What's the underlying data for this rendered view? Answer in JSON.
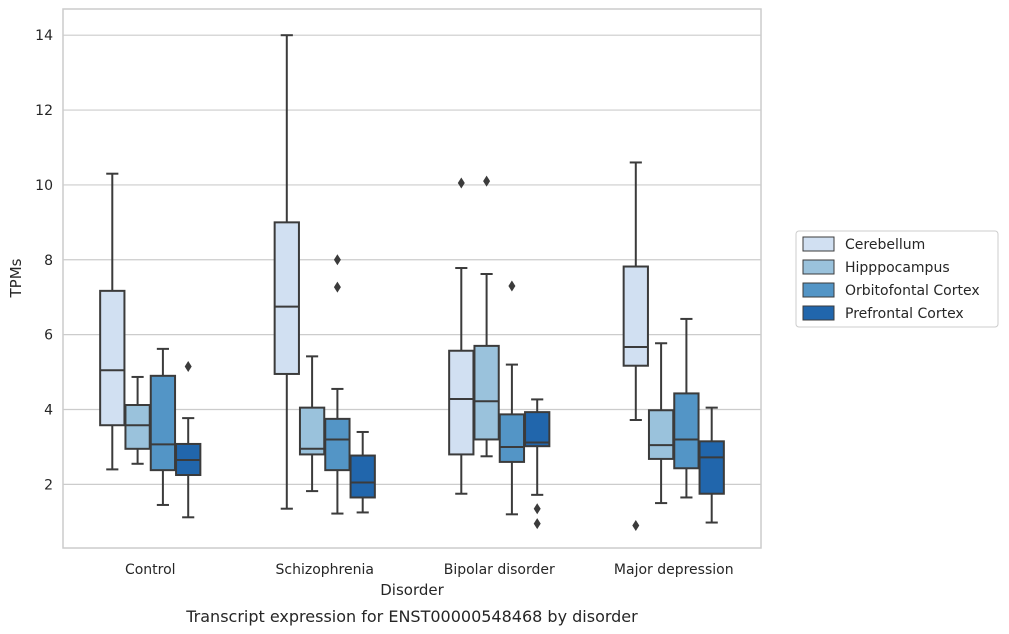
{
  "chart_data": {
    "type": "box",
    "title": "",
    "caption": "Transcript expression for ENST00000548468 by disorder",
    "xlabel": "Disorder",
    "ylabel": "TPMs",
    "ylim": [
      0.3,
      14.7
    ],
    "yticks": [
      2,
      4,
      6,
      8,
      10,
      12,
      14
    ],
    "grid": "horizontal",
    "legend_position": "right",
    "categories": [
      "Control",
      "Schizophrenia",
      "Bipolar disorder",
      "Major depression"
    ],
    "series": [
      {
        "name": "Cerebellum",
        "color": "#d1e0f2",
        "boxes": [
          {
            "whislo": 2.4,
            "q1": 3.58,
            "med": 5.05,
            "q3": 7.17,
            "whishi": 10.3,
            "fliers": []
          },
          {
            "whislo": 1.35,
            "q1": 4.95,
            "med": 6.75,
            "q3": 9.0,
            "whishi": 14.0,
            "fliers": []
          },
          {
            "whislo": 1.75,
            "q1": 2.8,
            "med": 4.28,
            "q3": 5.57,
            "whishi": 7.78,
            "fliers": [
              10.05
            ]
          },
          {
            "whislo": 3.72,
            "q1": 5.17,
            "med": 5.67,
            "q3": 7.82,
            "whishi": 10.6,
            "fliers": [
              0.9
            ]
          }
        ]
      },
      {
        "name": "Hipppocampus",
        "color": "#9ac2dc",
        "boxes": [
          {
            "whislo": 2.55,
            "q1": 2.95,
            "med": 3.58,
            "q3": 4.12,
            "whishi": 4.87,
            "fliers": []
          },
          {
            "whislo": 1.82,
            "q1": 2.8,
            "med": 2.95,
            "q3": 4.05,
            "whishi": 5.42,
            "fliers": []
          },
          {
            "whislo": 2.75,
            "q1": 3.2,
            "med": 4.22,
            "q3": 5.7,
            "whishi": 7.62,
            "fliers": [
              10.1
            ]
          },
          {
            "whislo": 1.5,
            "q1": 2.68,
            "med": 3.05,
            "q3": 3.98,
            "whishi": 5.77,
            "fliers": []
          }
        ]
      },
      {
        "name": "Orbitofontal Cortex",
        "color": "#5395c6",
        "boxes": [
          {
            "whislo": 1.45,
            "q1": 2.38,
            "med": 3.07,
            "q3": 4.9,
            "whishi": 5.62,
            "fliers": []
          },
          {
            "whislo": 1.22,
            "q1": 2.38,
            "med": 3.2,
            "q3": 3.75,
            "whishi": 4.55,
            "fliers": [
              7.27,
              8.0
            ]
          },
          {
            "whislo": 1.2,
            "q1": 2.6,
            "med": 3.0,
            "q3": 3.87,
            "whishi": 5.2,
            "fliers": [
              7.3
            ]
          },
          {
            "whislo": 1.65,
            "q1": 2.43,
            "med": 3.2,
            "q3": 4.43,
            "whishi": 6.42,
            "fliers": []
          }
        ]
      },
      {
        "name": "Prefrontal Cortex",
        "color": "#2166ac",
        "boxes": [
          {
            "whislo": 1.12,
            "q1": 2.25,
            "med": 2.65,
            "q3": 3.08,
            "whishi": 3.77,
            "fliers": [
              5.15
            ]
          },
          {
            "whislo": 1.25,
            "q1": 1.65,
            "med": 2.05,
            "q3": 2.77,
            "whishi": 3.4,
            "fliers": []
          },
          {
            "whislo": 1.72,
            "q1": 3.02,
            "med": 3.12,
            "q3": 3.93,
            "whishi": 4.27,
            "fliers": [
              1.35,
              0.95
            ]
          },
          {
            "whislo": 0.98,
            "q1": 1.75,
            "med": 2.72,
            "q3": 3.15,
            "whishi": 4.05,
            "fliers": []
          }
        ]
      }
    ]
  }
}
